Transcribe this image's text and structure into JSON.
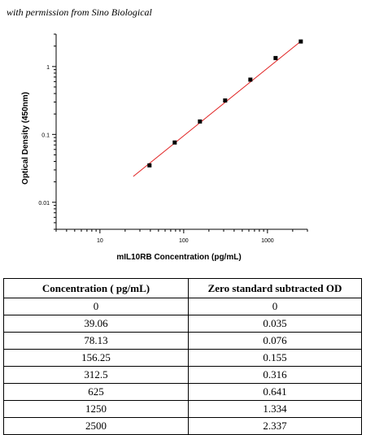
{
  "caption": "with permission from Sino Biological",
  "chart_data": {
    "type": "scatter",
    "scale": "log-log",
    "xlabel": "mIL10RB Concentration (pg/mL)",
    "ylabel": "Optical Density (450nm)",
    "xlim": [
      3,
      3000
    ],
    "ylim": [
      0.004,
      3
    ],
    "x_ticks": [
      {
        "value": 10,
        "label": "10"
      },
      {
        "value": 100,
        "label": "100"
      },
      {
        "value": 1000,
        "label": "1000"
      }
    ],
    "y_ticks": [
      {
        "value": 0.01,
        "label": "0.01"
      },
      {
        "value": 0.1,
        "label": "0.1"
      },
      {
        "value": 1,
        "label": "1"
      }
    ],
    "series": [
      {
        "marker_color": "#000000",
        "x": [
          39.06,
          78.13,
          156.25,
          312.5,
          625,
          1250,
          2500
        ],
        "y": [
          0.035,
          0.076,
          0.155,
          0.316,
          0.641,
          1.334,
          2.337
        ]
      }
    ],
    "fit_line": {
      "color": "#e02020",
      "x": [
        25,
        2600
      ],
      "y": [
        0.024,
        2.45
      ]
    }
  },
  "table": {
    "headers": [
      "Concentration ( pg/mL)",
      "Zero standard subtracted OD"
    ],
    "rows": [
      [
        "0",
        "0"
      ],
      [
        "39.06",
        "0.035"
      ],
      [
        "78.13",
        "0.076"
      ],
      [
        "156.25",
        "0.155"
      ],
      [
        "312.5",
        "0.316"
      ],
      [
        "625",
        "0.641"
      ],
      [
        "1250",
        "1.334"
      ],
      [
        "2500",
        "2.337"
      ]
    ]
  }
}
